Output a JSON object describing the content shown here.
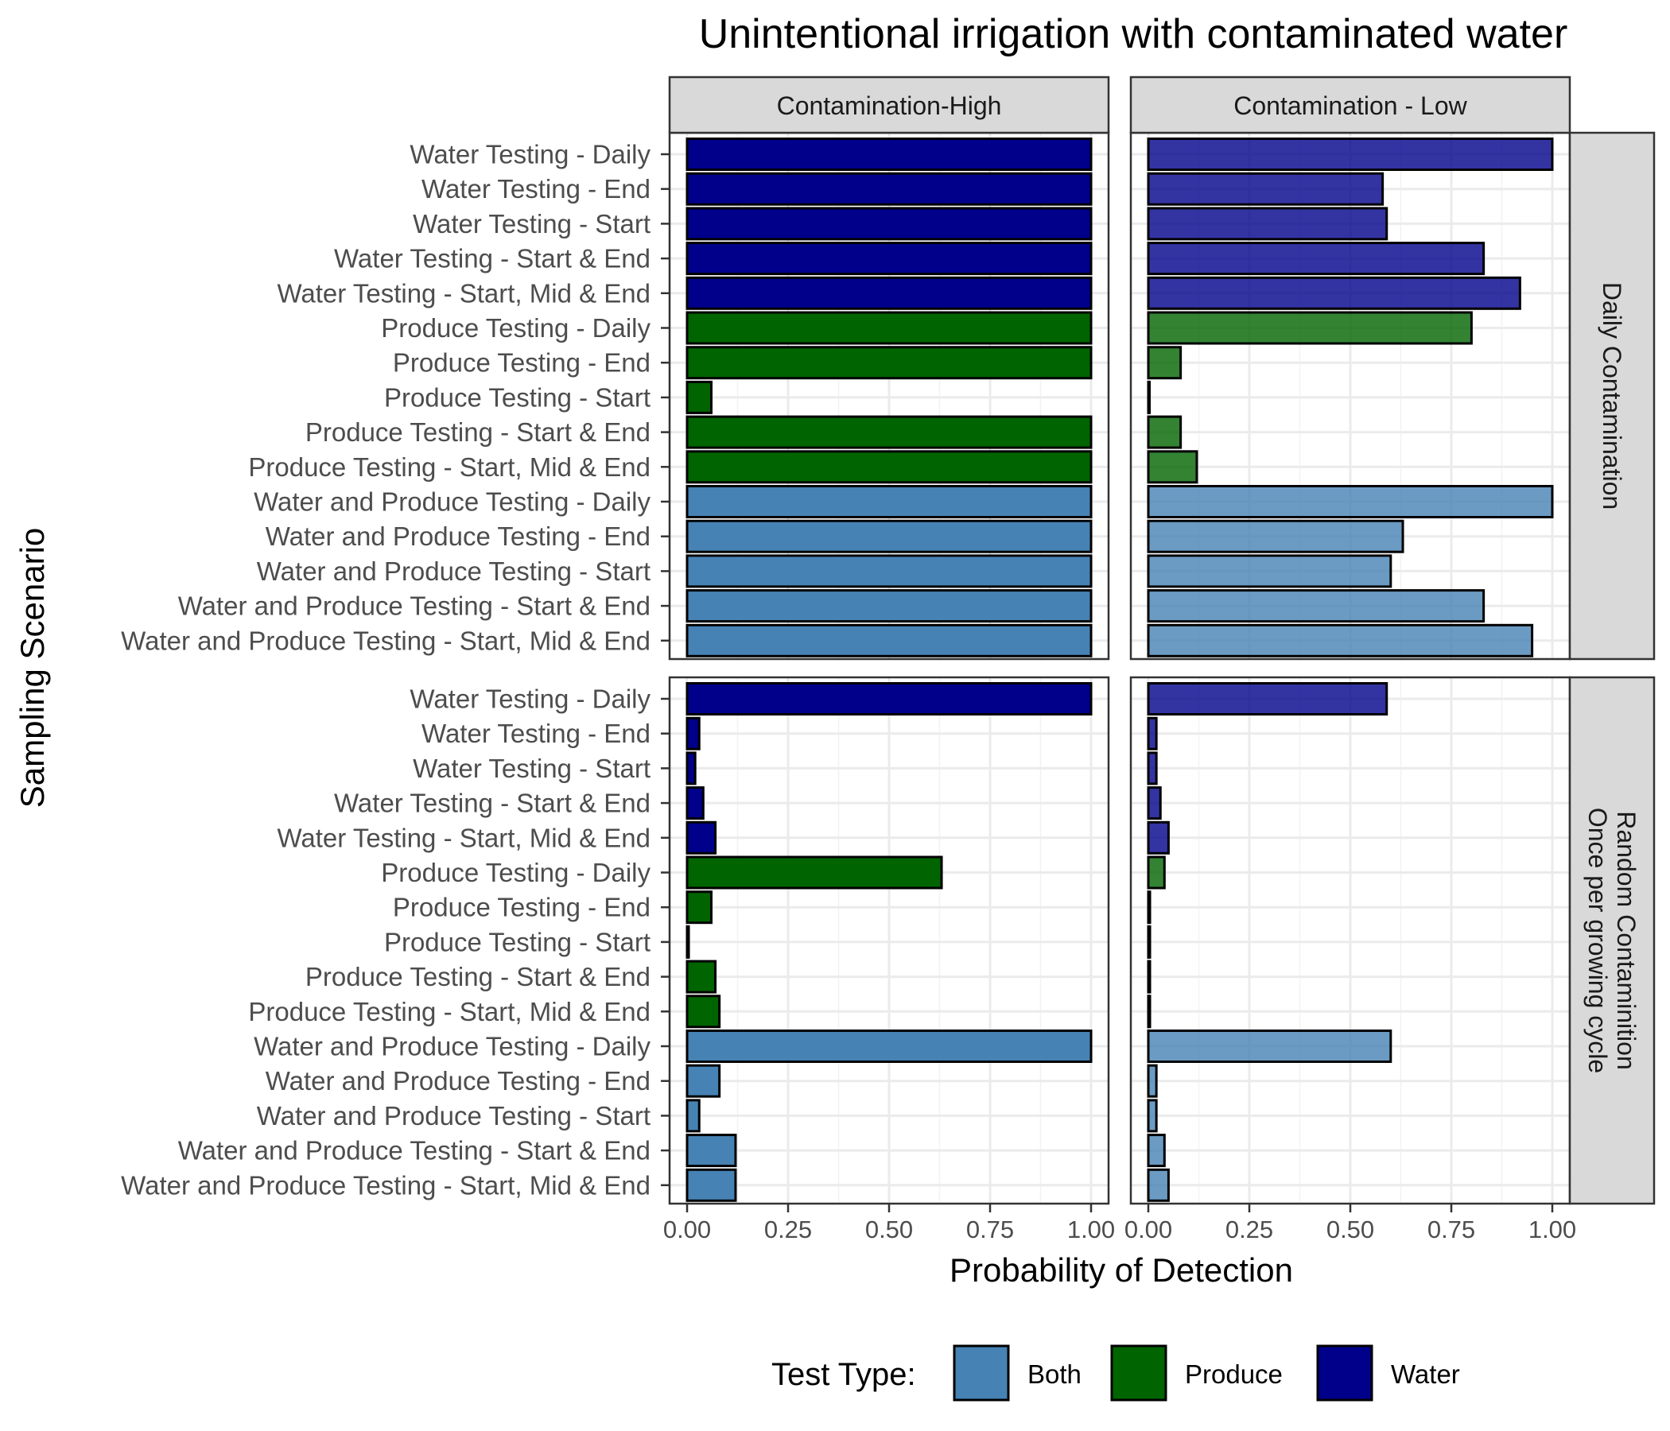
{
  "chart_data": {
    "type": "bar",
    "orientation": "horizontal",
    "title": "Unintentional irrigation with contaminated water",
    "xlabel": "Probability of Detection",
    "ylabel": "Sampling Scenario",
    "xlim": [
      0,
      1
    ],
    "xticks": [
      "0.00",
      "0.25",
      "0.50",
      "0.75",
      "1.00"
    ],
    "grid": true,
    "legend": {
      "title": "Test Type:",
      "placement": "bottom",
      "items": [
        {
          "name": "Both",
          "color": "#4682b4"
        },
        {
          "name": "Produce",
          "color": "#006400"
        },
        {
          "name": "Water",
          "color": "#00008b"
        }
      ]
    },
    "colors": {
      "Both": "#4682b4",
      "Produce": "#006400",
      "Water": "#00008b"
    },
    "categories": [
      "Water Testing - Daily",
      "Water Testing -  End",
      "Water Testing -  Start",
      "Water Testing - Start & End",
      "Water Testing - Start, Mid & End",
      "Produce Testing - Daily",
      "Produce Testing - End",
      "Produce Testing - Start",
      "Produce Testing - Start & End",
      "Produce Testing - Start, Mid & End",
      "Water and Produce Testing - Daily",
      "Water and Produce Testing - End",
      "Water and Produce Testing - Start",
      "Water and Produce Testing - Start & End",
      "Water and Produce Testing - Start, Mid & End"
    ],
    "category_types": [
      "Water",
      "Water",
      "Water",
      "Water",
      "Water",
      "Produce",
      "Produce",
      "Produce",
      "Produce",
      "Produce",
      "Both",
      "Both",
      "Both",
      "Both",
      "Both"
    ],
    "columns": [
      {
        "label": "Contamination-High",
        "faded": false
      },
      {
        "label": "Contamination - Low",
        "faded": true
      }
    ],
    "rows": [
      {
        "label": "Daily Contamination"
      },
      {
        "label": "Random Contaminition Once per growing cycle",
        "lines": [
          "Random Contaminition",
          "Once per growing cycle"
        ]
      }
    ],
    "panels": [
      {
        "row": 0,
        "col": 0,
        "values": [
          1.0,
          1.0,
          1.0,
          1.0,
          1.0,
          1.0,
          1.0,
          0.06,
          1.0,
          1.0,
          1.0,
          1.0,
          1.0,
          1.0,
          1.0
        ]
      },
      {
        "row": 0,
        "col": 1,
        "values": [
          1.0,
          0.58,
          0.59,
          0.83,
          0.92,
          0.8,
          0.08,
          0.003,
          0.08,
          0.12,
          1.0,
          0.63,
          0.6,
          0.83,
          0.95
        ]
      },
      {
        "row": 1,
        "col": 0,
        "values": [
          1.0,
          0.03,
          0.02,
          0.04,
          0.07,
          0.63,
          0.06,
          0.004,
          0.07,
          0.08,
          1.0,
          0.08,
          0.03,
          0.12,
          0.12
        ]
      },
      {
        "row": 1,
        "col": 1,
        "values": [
          0.59,
          0.02,
          0.02,
          0.03,
          0.05,
          0.04,
          0.004,
          0.004,
          0.004,
          0.004,
          0.6,
          0.02,
          0.02,
          0.04,
          0.05
        ]
      }
    ]
  }
}
